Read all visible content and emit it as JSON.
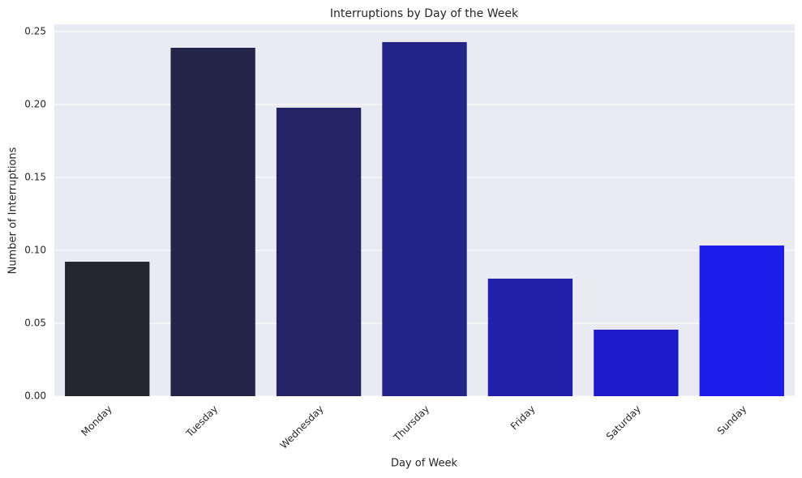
{
  "chart_data": {
    "type": "bar",
    "title": "Interruptions by Day of the Week",
    "x_label": "Day of Week",
    "y_label": "Number of Interruptions",
    "categories": [
      "Monday",
      "Tuesday",
      "Wednesday",
      "Thursday",
      "Friday",
      "Saturday",
      "Sunday"
    ],
    "values": [
      0.0922,
      0.2389,
      0.1978,
      0.2428,
      0.0806,
      0.0456,
      0.1033
    ],
    "colors": [
      "#26262f",
      "#25254a",
      "#232365",
      "#232388",
      "#2020aa",
      "#1c1cca",
      "#1c1ceb"
    ],
    "ylim": [
      0,
      0.255
    ],
    "yticks": [
      {
        "value": 0,
        "label": "0.00"
      },
      {
        "value": 0.05,
        "label": "0.05"
      },
      {
        "value": 0.1,
        "label": "0.10"
      },
      {
        "value": 0.15,
        "label": "0.15"
      },
      {
        "value": 0.2,
        "label": "0.20"
      },
      {
        "value": 0.25,
        "label": "0.25"
      }
    ],
    "grid": true
  }
}
